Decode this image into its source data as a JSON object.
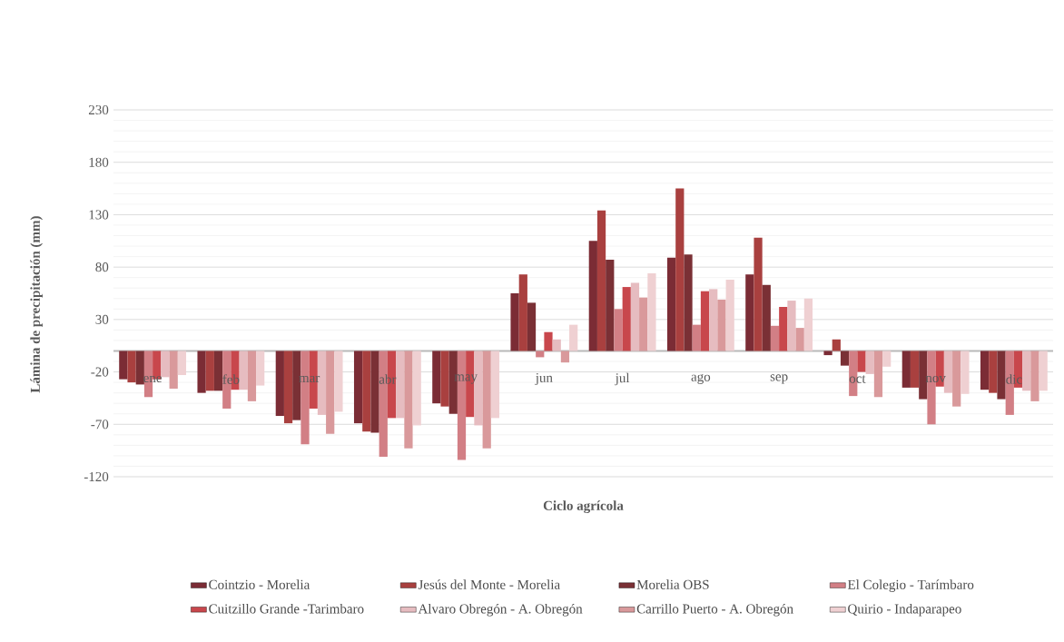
{
  "chart_data": {
    "type": "bar",
    "xlabel": "Ciclo agrícola",
    "ylabel": "Lámina de precipitación (mm)",
    "categories": [
      "ene",
      "feb",
      "mar",
      "abr",
      "may",
      "jun",
      "jul",
      "ago",
      "sep",
      "oct",
      "nov",
      "dic"
    ],
    "series": [
      {
        "name": "Cointzio - Morelia",
        "color": "#7b2c35",
        "values": [
          -27,
          -40,
          -62,
          -69,
          -50,
          55,
          105,
          89,
          73,
          -4,
          -35,
          -37
        ]
      },
      {
        "name": "Jesús del Monte - Morelia",
        "color": "#a9403f",
        "values": [
          -30,
          -38,
          -69,
          -77,
          -53,
          73,
          134,
          155,
          108,
          11,
          -35,
          -40
        ]
      },
      {
        "name": "Morelia OBS",
        "color": "#7a3035",
        "values": [
          -32,
          -38,
          -66,
          -78,
          -60,
          46,
          87,
          92,
          63,
          -14,
          -46,
          -46
        ]
      },
      {
        "name": "El Colegio - Tarímbaro",
        "color": "#d27f85",
        "values": [
          -44,
          -55,
          -89,
          -101,
          -104,
          -6,
          40,
          25,
          24,
          -43,
          -70,
          -61
        ]
      },
      {
        "name": "Cuitzillo Grande -Tarimbaro",
        "color": "#c8474c",
        "values": [
          -27,
          -37,
          -55,
          -64,
          -63,
          18,
          61,
          57,
          42,
          -20,
          -34,
          -35
        ]
      },
      {
        "name": "Alvaro Obregón  - A. Obregón",
        "color": "#e6bcc0",
        "values": [
          -25,
          -37,
          -61,
          -64,
          -71,
          11,
          65,
          59,
          48,
          -22,
          -40,
          -38
        ]
      },
      {
        "name": "Carrillo Puerto - A. Obregón",
        "color": "#d9999b",
        "values": [
          -36,
          -48,
          -79,
          -93,
          -93,
          -11,
          51,
          49,
          22,
          -44,
          -53,
          -48
        ]
      },
      {
        "name": "Quirio - Indaparapeo",
        "color": "#efd0d2",
        "values": [
          -23,
          -33,
          -58,
          -71,
          -64,
          25,
          74,
          68,
          50,
          -15,
          -41,
          -38
        ]
      }
    ],
    "ylim": [
      -120,
      230
    ],
    "yticks": [
      -120,
      -70,
      -20,
      30,
      80,
      130,
      180,
      230
    ],
    "grid": "y",
    "legend": "bottom"
  }
}
